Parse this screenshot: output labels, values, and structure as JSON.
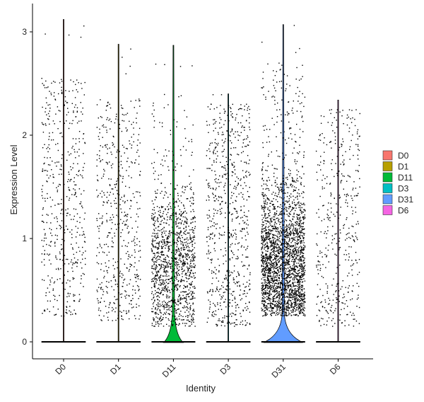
{
  "chart_data": {
    "type": "violin",
    "title": "",
    "xlabel": "Identity",
    "ylabel": "Expression Level",
    "ylim": [
      -0.15,
      3.15
    ],
    "yticks": [
      0,
      1,
      2,
      3
    ],
    "categories": [
      "D0",
      "D1",
      "D11",
      "D3",
      "D31",
      "D6"
    ],
    "colors": [
      "#F8766D",
      "#B79F00",
      "#00BA38",
      "#00BFC4",
      "#619CFF",
      "#F564E3"
    ],
    "series": [
      {
        "name": "D0",
        "max": 3.12,
        "zero_fraction": 0.85,
        "point_count": 500,
        "nonzero_range": [
          0.25,
          2.55
        ],
        "violin_width": 0.0
      },
      {
        "name": "D1",
        "max": 2.88,
        "zero_fraction": 0.88,
        "point_count": 520,
        "nonzero_range": [
          0.2,
          2.35
        ],
        "violin_width": 0.0
      },
      {
        "name": "D11",
        "max": 2.87,
        "zero_fraction": 0.6,
        "point_count": 1300,
        "nonzero_range": [
          0.15,
          2.4
        ],
        "violin_width": 0.45
      },
      {
        "name": "D3",
        "max": 2.4,
        "zero_fraction": 0.88,
        "point_count": 700,
        "nonzero_range": [
          0.15,
          2.3
        ],
        "violin_width": 0.0
      },
      {
        "name": "D31",
        "max": 3.07,
        "zero_fraction": 0.5,
        "point_count": 2600,
        "nonzero_range": [
          0.25,
          2.7
        ],
        "violin_width": 0.9
      },
      {
        "name": "D6",
        "max": 2.34,
        "zero_fraction": 0.9,
        "point_count": 420,
        "nonzero_range": [
          0.15,
          2.25
        ],
        "violin_width": 0.0
      }
    ],
    "legend": {
      "position": "right",
      "entries": [
        "D0",
        "D1",
        "D11",
        "D3",
        "D31",
        "D6"
      ]
    },
    "grid": false
  }
}
